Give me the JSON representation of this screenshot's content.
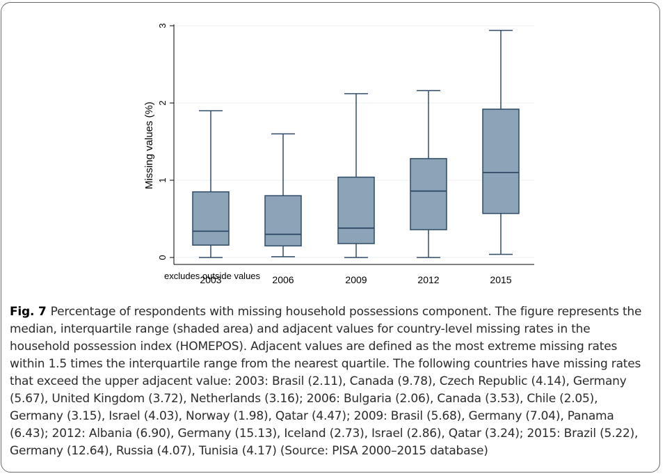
{
  "figure": {
    "label": "Fig. 7",
    "caption": "Percentage of respondents with missing household possessions component. The figure represents the median, interquartile range (shaded area) and adjacent values for country-level missing rates in the household possession index (HOMEPOS). Adjacent values are defined as the most extreme missing rates within 1.5 times the interquartile range from the nearest quartile. The following countries have missing rates that exceed the upper adjacent value: 2003: Brasil (2.11), Canada (9.78), Czech Republic (4.14), Germany (5.67), United Kingdom (3.72), Netherlands (3.16); 2006: Bulgaria (2.06), Canada (3.53), Chile (2.05), Germany (3.15), Israel (4.03), Norway (1.98), Qatar (4.47); 2009: Brasil (5.68), Germany (7.04), Panama (6.43); 2012: Albania (6.90), Germany (15.13), Iceland (2.73), Israel (2.86), Qatar (3.24); 2015: Brazil (5.22), Germany (12.64), Russia (4.07), Tunisia (4.17) (Source: PISA 2000–2015 database)"
  },
  "chart_data": {
    "type": "boxplot",
    "ylabel": "Missing values (%)",
    "note": "excludes outside values",
    "ylim": [
      0,
      3
    ],
    "yticks": [
      0,
      1,
      2,
      3
    ],
    "grid": true,
    "box_color": "#8ca3b8",
    "line_color": "#2e4a66",
    "categories": [
      "2003",
      "2006",
      "2009",
      "2012",
      "2015"
    ],
    "boxes": [
      {
        "x": "2003",
        "lower_adjacent": 0.0,
        "q1": 0.16,
        "median": 0.34,
        "q3": 0.85,
        "upper_adjacent": 1.9
      },
      {
        "x": "2006",
        "lower_adjacent": 0.01,
        "q1": 0.15,
        "median": 0.3,
        "q3": 0.8,
        "upper_adjacent": 1.6
      },
      {
        "x": "2009",
        "lower_adjacent": 0.0,
        "q1": 0.18,
        "median": 0.38,
        "q3": 1.04,
        "upper_adjacent": 2.12
      },
      {
        "x": "2012",
        "lower_adjacent": 0.0,
        "q1": 0.36,
        "median": 0.86,
        "q3": 1.28,
        "upper_adjacent": 2.16
      },
      {
        "x": "2015",
        "lower_adjacent": 0.04,
        "q1": 0.57,
        "median": 1.1,
        "q3": 1.92,
        "upper_adjacent": 2.94
      }
    ]
  }
}
